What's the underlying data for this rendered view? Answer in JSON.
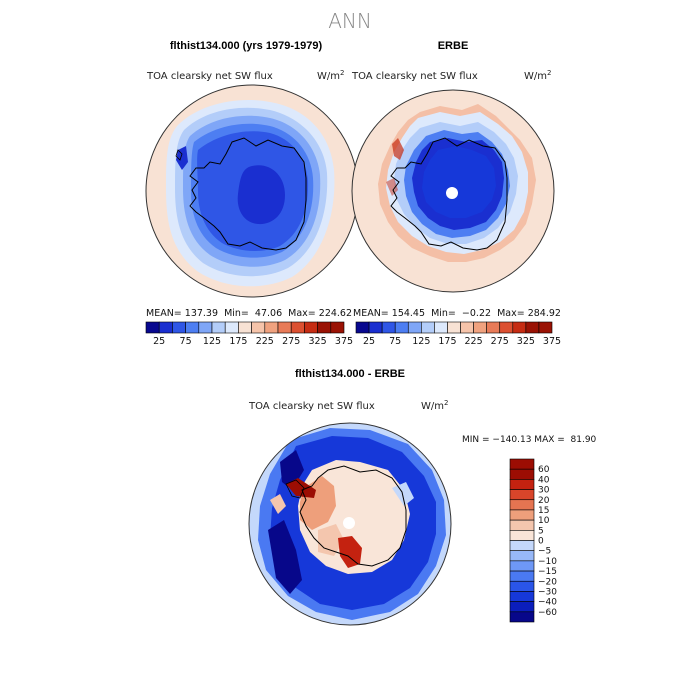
{
  "figure_title": "ANN",
  "colors": {
    "blues": [
      "#08088f",
      "#1a2fd0",
      "#2f56e6",
      "#4d7ef2",
      "#7fa6f7",
      "#b3cdf9",
      "#dde9fc"
    ],
    "neutral": "#f8e2d4",
    "reds": [
      "#f6c4aa",
      "#f0a27f",
      "#e87b58",
      "#dc5031",
      "#c62c13",
      "#9a1204"
    ],
    "diff_scale": [
      "#07078a",
      "#0b1ebc",
      "#1638d9",
      "#2a55e9",
      "#4a79f2",
      "#6e98f6",
      "#97b8f8",
      "#c4d8fb",
      "#f9e5d8",
      "#f4c6ae",
      "#ee9f7b",
      "#e57451",
      "#d8452a",
      "#c42210",
      "#9c0d03"
    ]
  },
  "panels": {
    "model": {
      "header": "flthist134.000 (yrs 1979-1979)",
      "field_label": "TOA clearsky net SW flux",
      "units_base": "W/m",
      "units_exp": "2",
      "stats": "MEAN= 137.39  Min=  47.06  Max= 224.62"
    },
    "obs": {
      "header": "ERBE",
      "field_label": "TOA clearsky net SW flux",
      "units_base": "W/m",
      "units_exp": "2",
      "stats": "MEAN= 154.45  Min=  −0.22  Max= 284.92"
    },
    "diff": {
      "header": "flthist134.000 - ERBE",
      "field_label": "TOA clearsky net SW flux",
      "units_base": "W/m",
      "units_exp": "2",
      "stats": "MIN = −140.13 MAX =  81.90"
    }
  },
  "chart_data": [
    {
      "type": "heatmap",
      "title": "flthist134.000 (yrs 1979-1979)",
      "projection": "south polar stereographic",
      "variable": "TOA clearsky net SW flux",
      "units": "W/m^2",
      "mean": 137.39,
      "min": 47.06,
      "max": 224.62,
      "colorbar_ticks": [
        "25",
        "75",
        "125",
        "175",
        "225",
        "275",
        "325",
        "375"
      ],
      "colorbar_ticks_positions": [
        1,
        3,
        5,
        7,
        9,
        11,
        13,
        15
      ]
    },
    {
      "type": "heatmap",
      "title": "ERBE",
      "projection": "south polar stereographic",
      "variable": "TOA clearsky net SW flux",
      "units": "W/m^2",
      "mean": 154.45,
      "min": -0.22,
      "max": 284.92,
      "colorbar_ticks": [
        "25",
        "75",
        "125",
        "175",
        "225",
        "275",
        "325",
        "375"
      ],
      "colorbar_ticks_positions": [
        1,
        3,
        5,
        7,
        9,
        11,
        13,
        15
      ]
    },
    {
      "type": "heatmap",
      "title": "flthist134.000 - ERBE",
      "projection": "south polar stereographic",
      "variable": "TOA clearsky net SW flux",
      "units": "W/m^2",
      "min": -140.13,
      "max": 81.9,
      "colorbar_ticks": [
        "60",
        "40",
        "30",
        "20",
        "15",
        "10",
        "5",
        "0",
        "−5",
        "−10",
        "−15",
        "−20",
        "−30",
        "−40",
        "−60"
      ]
    }
  ]
}
